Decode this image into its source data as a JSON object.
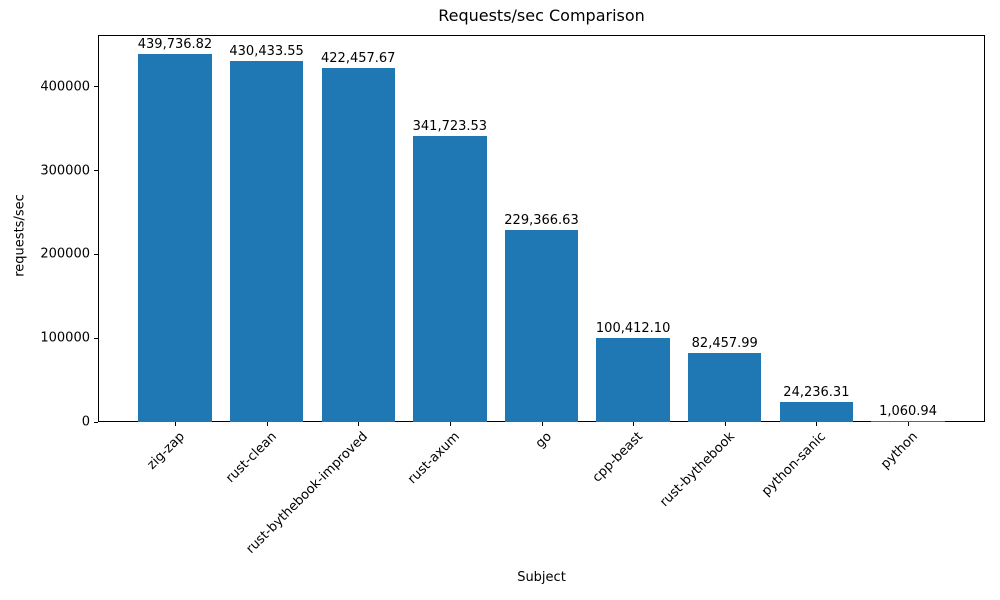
{
  "figure": {
    "title": "Requests/sec Comparison",
    "xlabel": "Subject",
    "ylabel": "requests/sec"
  },
  "chart_data": {
    "type": "bar",
    "title": "Requests/sec Comparison",
    "xlabel": "Subject",
    "ylabel": "requests/sec",
    "categories": [
      "zig-zap",
      "rust-clean",
      "rust-bythebook-improved",
      "rust-axum",
      "go",
      "cpp-beast",
      "rust-bythebook",
      "python-sanic",
      "python"
    ],
    "values": [
      439736.82,
      430433.55,
      422457.67,
      341723.53,
      229366.63,
      100412.1,
      82457.99,
      24236.31,
      1060.94
    ],
    "value_labels": [
      "439,736.82",
      "430,433.55",
      "422,457.67",
      "341,723.53",
      "229,366.63",
      "100,412.10",
      "82,457.99",
      "24,236.31",
      "1,060.94"
    ],
    "bar_color": "#1f77b4",
    "ylim": [
      0,
      462000
    ],
    "yticks": [
      0,
      100000,
      200000,
      300000,
      400000
    ],
    "ytick_labels": [
      "0",
      "100000",
      "200000",
      "300000",
      "400000"
    ],
    "x_tick_rotation_deg": 45,
    "grid": false,
    "legend": null
  }
}
